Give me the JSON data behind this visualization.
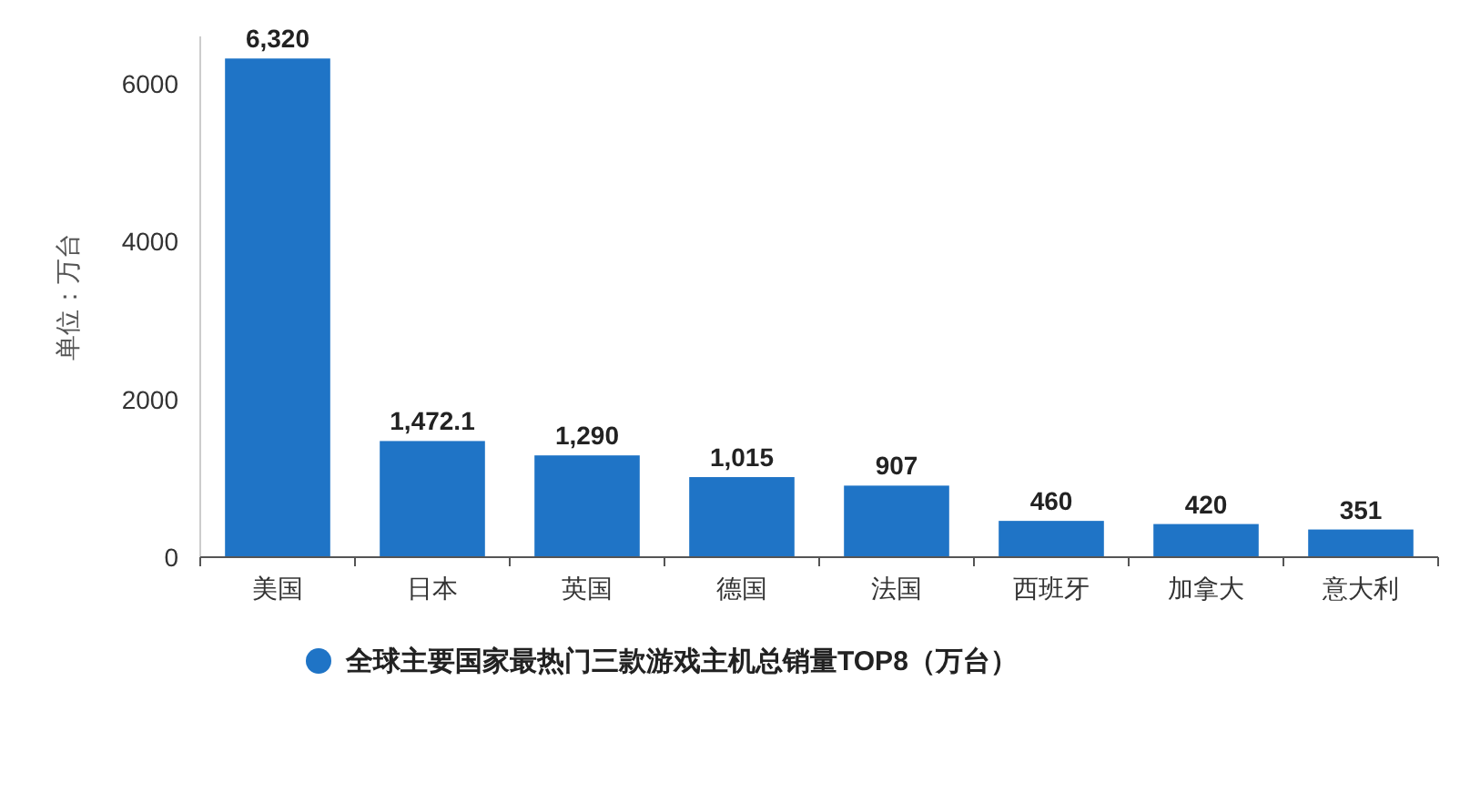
{
  "chart_data": {
    "type": "bar",
    "ylabel": "单位：万台",
    "categories": [
      "美国",
      "日本",
      "英国",
      "德国",
      "法国",
      "西班牙",
      "加拿大",
      "意大利"
    ],
    "series": [
      {
        "name": "全球主要国家最热门三款游戏主机总销量TOP8（万台）",
        "color": "#1f74c6",
        "values": [
          6320,
          1472.1,
          1290,
          1015,
          907,
          460,
          420,
          351
        ],
        "value_labels": [
          "6,320",
          "1,472.1",
          "1,290",
          "1,015",
          "907",
          "460",
          "420",
          "351"
        ]
      }
    ],
    "ylim": [
      0,
      6600
    ],
    "yticks": [
      0,
      2000,
      4000,
      6000
    ],
    "legend": "bottom"
  }
}
